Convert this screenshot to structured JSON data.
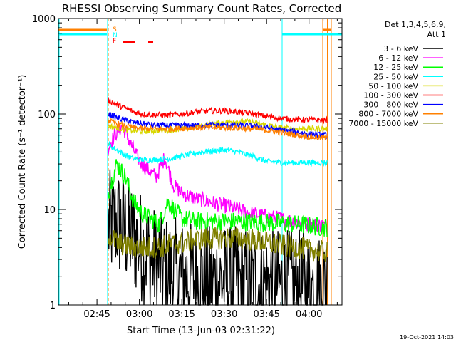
{
  "chart_data": {
    "type": "line",
    "title": "RHESSI Observing Summary Count Rates, Corrected",
    "xlabel": "Start Time (13-Jun-03 02:31:22)",
    "ylabel": "Corrected Count Rate (s⁻¹ detector⁻¹)",
    "y_scale": "log",
    "ylim": [
      1,
      1000
    ],
    "xlim": [
      "02:31:22",
      "04:11:40"
    ],
    "x_ticks": [
      "02:45",
      "03:00",
      "03:15",
      "03:30",
      "03:45",
      "04:00"
    ],
    "y_ticks": [
      "1",
      "10",
      "100",
      "1000"
    ],
    "grid": false,
    "legend": {
      "placement": "top-right",
      "header": [
        "Det 1,3,4,5,6,9,",
        "Att 1"
      ]
    },
    "flag_labels": [
      "S",
      "N",
      "F"
    ],
    "timestamp": "19-Oct-2021 14:03",
    "data_window": [
      "02:49:00",
      "04:06:30"
    ],
    "series": [
      {
        "name": "3 - 6 keV",
        "color": "#000000",
        "x": [
          "02:49",
          "02:52",
          "02:55",
          "02:58",
          "03:01",
          "03:04",
          "03:07",
          "03:10",
          "03:15",
          "03:20",
          "03:25",
          "03:30",
          "03:35",
          "03:40",
          "03:45",
          "03:50",
          "03:55",
          "04:00",
          "04:05"
        ],
        "y": [
          6.5,
          7.5,
          6,
          5,
          4,
          3,
          2.5,
          2.2,
          2,
          1.9,
          1.8,
          1.8,
          1.7,
          1.7,
          1.7,
          1.6,
          1.6,
          1.5,
          1.5
        ]
      },
      {
        "name": "6 - 12 keV",
        "color": "#ff00ff",
        "x": [
          "02:49",
          "02:52",
          "02:54",
          "02:57",
          "03:00",
          "03:03",
          "03:06",
          "03:09",
          "03:12",
          "03:15",
          "03:20",
          "03:25",
          "03:30",
          "03:35",
          "03:40",
          "03:45",
          "03:50",
          "03:55",
          "04:00",
          "04:05"
        ],
        "y": [
          45,
          65,
          75,
          48,
          32,
          26,
          22,
          35,
          18,
          15,
          13,
          12,
          11,
          10,
          9,
          8.5,
          8,
          7.5,
          7,
          6.8
        ]
      },
      {
        "name": "12 - 25 keV",
        "color": "#00ff00",
        "x": [
          "02:49",
          "02:52",
          "02:55",
          "02:58",
          "03:01",
          "03:04",
          "03:07",
          "03:10",
          "03:15",
          "03:20",
          "03:25",
          "03:30",
          "03:35",
          "03:40",
          "03:45",
          "03:50",
          "03:55",
          "04:00",
          "04:05"
        ],
        "y": [
          15,
          30,
          22,
          12,
          9,
          8,
          7,
          12,
          8,
          7.5,
          7.5,
          7.5,
          7.5,
          7.4,
          7.3,
          7.2,
          7,
          6.8,
          6.5
        ]
      },
      {
        "name": "25 - 50 keV",
        "color": "#00ffff",
        "x": [
          "02:49",
          "02:52",
          "02:55",
          "02:58",
          "03:01",
          "03:05",
          "03:10",
          "03:15",
          "03:20",
          "03:25",
          "03:30",
          "03:35",
          "03:40",
          "03:45",
          "03:50",
          "03:55",
          "04:00",
          "04:05"
        ],
        "y": [
          48,
          42,
          37,
          34,
          33,
          33,
          34,
          36,
          39,
          41,
          42,
          40,
          36,
          32,
          31,
          31,
          31,
          31
        ]
      },
      {
        "name": "50 - 100 keV",
        "color": "#d8d800",
        "x": [
          "02:49",
          "02:52",
          "02:55",
          "02:58",
          "03:01",
          "03:05",
          "03:10",
          "03:15",
          "03:20",
          "03:25",
          "03:30",
          "03:35",
          "03:40",
          "03:45",
          "03:50",
          "03:55",
          "04:00",
          "04:05"
        ],
        "y": [
          75,
          72,
          69,
          67,
          66,
          67,
          68,
          70,
          74,
          78,
          82,
          84,
          82,
          76,
          72,
          70,
          70,
          70
        ]
      },
      {
        "name": "100 - 300 keV",
        "color": "#ff0000",
        "x": [
          "02:49",
          "02:52",
          "02:55",
          "02:58",
          "03:01",
          "03:05",
          "03:10",
          "03:15",
          "03:20",
          "03:25",
          "03:30",
          "03:35",
          "03:40",
          "03:45",
          "03:50",
          "03:55",
          "04:00",
          "04:05"
        ],
        "y": [
          140,
          125,
          115,
          105,
          100,
          98,
          97,
          100,
          105,
          108,
          108,
          105,
          100,
          95,
          90,
          88,
          87,
          86
        ]
      },
      {
        "name": "300 - 800 keV",
        "color": "#0000ff",
        "x": [
          "02:49",
          "02:52",
          "02:55",
          "02:58",
          "03:01",
          "03:05",
          "03:10",
          "03:15",
          "03:20",
          "03:25",
          "03:30",
          "03:35",
          "03:40",
          "03:45",
          "03:50",
          "03:55",
          "04:00",
          "04:05"
        ],
        "y": [
          100,
          92,
          86,
          82,
          79,
          77,
          76,
          76,
          76,
          77,
          77,
          76,
          75,
          72,
          68,
          65,
          62,
          60
        ]
      },
      {
        "name": "800 - 7000 keV",
        "color": "#ff8000",
        "x": [
          "02:49",
          "02:52",
          "02:55",
          "02:58",
          "03:01",
          "03:05",
          "03:10",
          "03:15",
          "03:20",
          "03:25",
          "03:30",
          "03:35",
          "03:40",
          "03:45",
          "03:50",
          "03:55",
          "04:00",
          "04:05"
        ],
        "y": [
          85,
          80,
          75,
          72,
          70,
          70,
          70,
          71,
          72,
          72,
          72,
          71,
          70,
          68,
          64,
          61,
          58,
          56
        ]
      },
      {
        "name": "7000 - 15000 keV",
        "color": "#808000",
        "x": [
          "02:49",
          "02:52",
          "02:55",
          "02:58",
          "03:01",
          "03:05",
          "03:10",
          "03:15",
          "03:20",
          "03:25",
          "03:30",
          "03:35",
          "03:40",
          "03:45",
          "03:50",
          "03:55",
          "04:00",
          "04:05"
        ],
        "y": [
          5.5,
          4.5,
          4.2,
          4,
          4,
          4,
          4.2,
          4.5,
          4.8,
          5,
          5,
          5,
          4.8,
          4.5,
          4.2,
          4,
          3.8,
          3.6
        ]
      }
    ]
  },
  "colors": {
    "cyan_marker": "#00ffff",
    "orange_marker": "#ff8000",
    "flag_red": "#ff0000"
  }
}
